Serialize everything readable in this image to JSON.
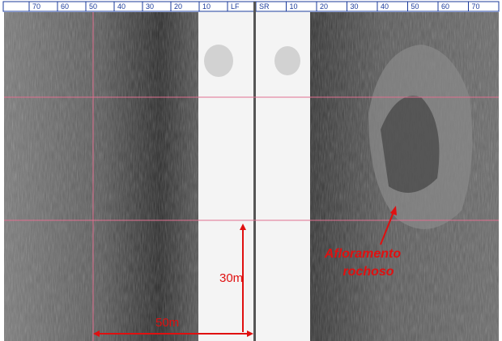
{
  "ruler": {
    "left": [
      "70",
      "60",
      "50",
      "40",
      "30",
      "20",
      "10",
      "LF"
    ],
    "right": [
      "SR",
      "10",
      "20",
      "30",
      "40",
      "50",
      "60",
      "70"
    ]
  },
  "annotations": {
    "horizontal_scale": "50m",
    "vertical_scale": "30m",
    "feature_line1": "Afloramento",
    "feature_line2": "rochoso"
  }
}
